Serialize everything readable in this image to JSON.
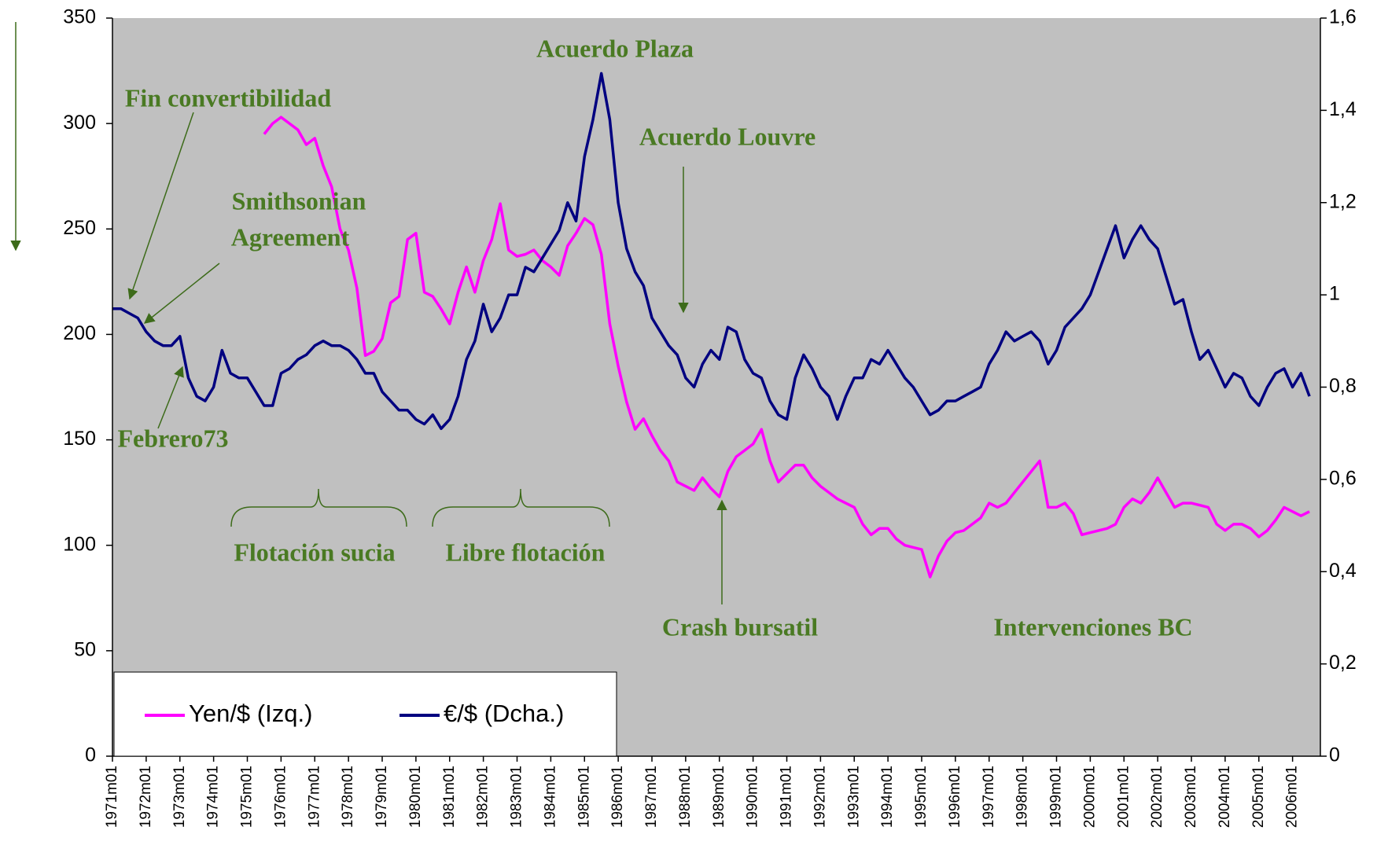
{
  "chart_data": {
    "type": "line",
    "categories": [
      "1971m01",
      null,
      null,
      null,
      "1972m01",
      null,
      null,
      null,
      "1973m01",
      null,
      null,
      null,
      "1974m01",
      null,
      null,
      null,
      "1975m01",
      null,
      null,
      null,
      "1976m01",
      null,
      null,
      null,
      "1977m01",
      null,
      null,
      null,
      "1978m01",
      null,
      null,
      null,
      "1979m01",
      null,
      null,
      null,
      "1980m01",
      null,
      null,
      null,
      "1981m01",
      null,
      null,
      null,
      "1982m01",
      null,
      null,
      null,
      "1983m01",
      null,
      null,
      null,
      "1984m01",
      null,
      null,
      null,
      "1985m01",
      null,
      null,
      null,
      "1986m01",
      null,
      null,
      null,
      "1987m01",
      null,
      null,
      null,
      "1988m01",
      null,
      null,
      null,
      "1989m01",
      null,
      null,
      null,
      "1990m01",
      null,
      null,
      null,
      "1991m01",
      null,
      null,
      null,
      "1992m01",
      null,
      null,
      null,
      "1993m01",
      null,
      null,
      null,
      "1994m01",
      null,
      null,
      null,
      "1995m01",
      null,
      null,
      null,
      "1996m01",
      null,
      null,
      null,
      "1997m01",
      null,
      null,
      null,
      "1998m01",
      null,
      null,
      null,
      "1999m01",
      null,
      null,
      null,
      "2000m01",
      null,
      null,
      null,
      "2001m01",
      null,
      null,
      null,
      "2002m01",
      null,
      null,
      null,
      "2003m01",
      null,
      null,
      null,
      "2004m01",
      null,
      null,
      null,
      "2005m01",
      null,
      null,
      null,
      "2006m01",
      null,
      null
    ],
    "series": [
      {
        "name": "Yen/$ (Izq.)",
        "color": "#ff00ff",
        "axis": "y",
        "values": [
          null,
          null,
          null,
          null,
          null,
          null,
          null,
          null,
          null,
          null,
          null,
          null,
          null,
          null,
          null,
          null,
          null,
          null,
          295,
          300,
          303,
          300,
          297,
          290,
          293,
          280,
          270,
          250,
          240,
          222,
          190,
          192,
          198,
          215,
          218,
          245,
          248,
          220,
          218,
          212,
          205,
          220,
          232,
          220,
          235,
          245,
          262,
          240,
          237,
          238,
          240,
          235,
          232,
          228,
          242,
          248,
          255,
          252,
          238,
          205,
          185,
          168,
          155,
          160,
          152,
          145,
          140,
          130,
          128,
          126,
          132,
          127,
          123,
          135,
          142,
          145,
          148,
          155,
          140,
          130,
          134,
          138,
          138,
          132,
          128,
          125,
          122,
          120,
          118,
          110,
          105,
          108,
          108,
          103,
          100,
          99,
          98,
          85,
          95,
          102,
          106,
          107,
          110,
          113,
          120,
          118,
          120,
          125,
          130,
          135,
          140,
          118,
          118,
          120,
          115,
          105,
          106,
          107,
          108,
          110,
          118,
          122,
          120,
          125,
          132,
          125,
          118,
          120,
          120,
          119,
          118,
          110,
          107,
          110,
          110,
          108,
          104,
          107,
          112,
          118,
          116,
          114,
          116
        ]
      },
      {
        "name": "€/$ (Dcha.)",
        "color": "#000080",
        "axis": "y2",
        "values": [
          0.97,
          0.97,
          0.96,
          0.95,
          0.92,
          0.9,
          0.89,
          0.89,
          0.91,
          0.82,
          0.78,
          0.77,
          0.8,
          0.88,
          0.83,
          0.82,
          0.82,
          0.79,
          0.76,
          0.76,
          0.83,
          0.84,
          0.86,
          0.87,
          0.89,
          0.9,
          0.89,
          0.89,
          0.88,
          0.86,
          0.83,
          0.83,
          0.79,
          0.77,
          0.75,
          0.75,
          0.73,
          0.72,
          0.74,
          0.71,
          0.73,
          0.78,
          0.86,
          0.9,
          0.98,
          0.92,
          0.95,
          1.0,
          1.0,
          1.06,
          1.05,
          1.08,
          1.11,
          1.14,
          1.2,
          1.16,
          1.3,
          1.38,
          1.48,
          1.38,
          1.2,
          1.1,
          1.05,
          1.02,
          0.95,
          0.92,
          0.89,
          0.87,
          0.82,
          0.8,
          0.85,
          0.88,
          0.86,
          0.93,
          0.92,
          0.86,
          0.83,
          0.82,
          0.77,
          0.74,
          0.73,
          0.82,
          0.87,
          0.84,
          0.8,
          0.78,
          0.73,
          0.78,
          0.82,
          0.82,
          0.86,
          0.85,
          0.88,
          0.85,
          0.82,
          0.8,
          0.77,
          0.74,
          0.75,
          0.77,
          0.77,
          0.78,
          0.79,
          0.8,
          0.85,
          0.88,
          0.92,
          0.9,
          0.91,
          0.92,
          0.9,
          0.85,
          0.88,
          0.93,
          0.95,
          0.97,
          1.0,
          1.05,
          1.1,
          1.15,
          1.08,
          1.12,
          1.15,
          1.12,
          1.1,
          1.04,
          0.98,
          0.99,
          0.92,
          0.86,
          0.88,
          0.84,
          0.8,
          0.83,
          0.82,
          0.78,
          0.76,
          0.8,
          0.83,
          0.84,
          0.8,
          0.83,
          0.78
        ]
      }
    ],
    "ylim": [
      0,
      350
    ],
    "yticks": [
      0,
      50,
      100,
      150,
      200,
      250,
      300,
      350
    ],
    "y2lim": [
      0,
      1.6
    ],
    "y2ticks": [
      0,
      {
        "value": 0.2,
        "label": "0,2"
      },
      {
        "value": 0.4,
        "label": "0,4"
      },
      {
        "value": 0.6,
        "label": "0,6"
      },
      {
        "value": 0.8,
        "label": "0,8"
      },
      1,
      {
        "value": 1.2,
        "label": "1,2"
      },
      {
        "value": 1.4,
        "label": "1,4"
      },
      {
        "value": 1.6,
        "label": "1,6"
      }
    ],
    "legend": "lower left",
    "annotations": [
      "Acuerdo Plaza",
      "Fin convertibilidad",
      "Acuerdo Louvre",
      "Smithsonian",
      "Agreement",
      "Febrero73",
      "Flotación sucia",
      "Libre flotación",
      "Crash bursatil",
      "Intervenciones BC"
    ]
  }
}
